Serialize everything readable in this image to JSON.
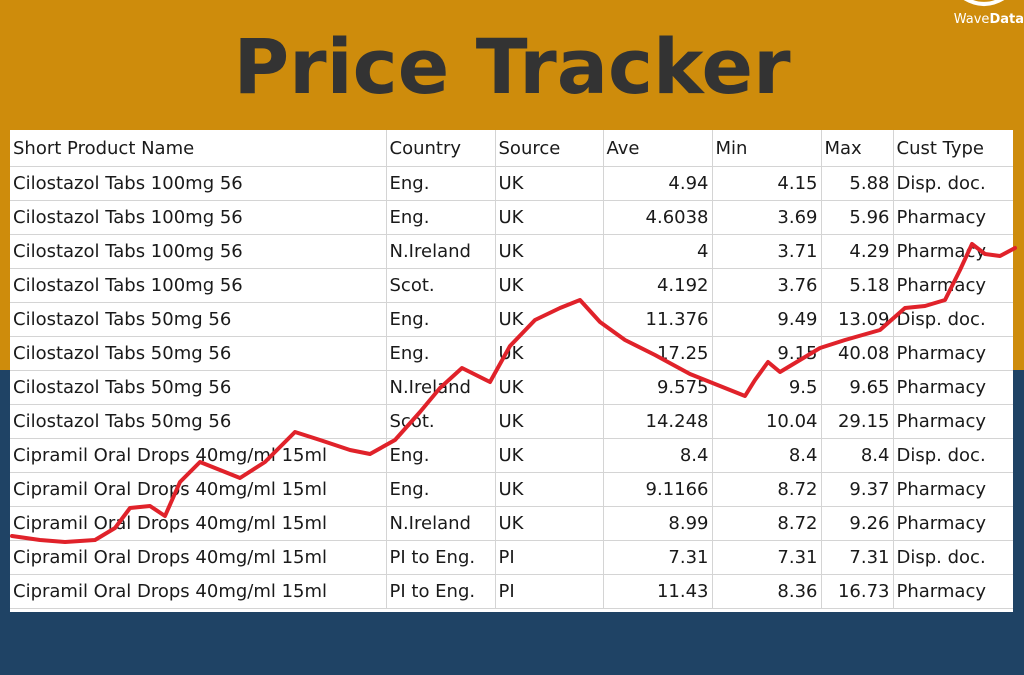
{
  "colors": {
    "top_band": "#CE8C0C",
    "bottom_band": "#1F4365",
    "title_text": "#333333",
    "trend_line": "#E0222A",
    "grid": "#D4D4D4"
  },
  "header": {
    "title": "Price Tracker"
  },
  "logo": {
    "icon": "wave-logo-icon",
    "text_main": "Wave",
    "text_bold": "Data"
  },
  "table": {
    "columns": [
      "Short Product Name",
      "Country",
      "Source",
      "Ave",
      "Min",
      "Max",
      "Cust Type"
    ],
    "rows": [
      [
        "Cilostazol Tabs 100mg 56",
        "Eng.",
        "UK",
        "4.94",
        "4.15",
        "5.88",
        "Disp. doc."
      ],
      [
        "Cilostazol Tabs 100mg 56",
        "Eng.",
        "UK",
        "4.6038",
        "3.69",
        "5.96",
        "Pharmacy"
      ],
      [
        "Cilostazol Tabs 100mg 56",
        "N.Ireland",
        "UK",
        "4",
        "3.71",
        "4.29",
        "Pharmacy"
      ],
      [
        "Cilostazol Tabs 100mg 56",
        "Scot.",
        "UK",
        "4.192",
        "3.76",
        "5.18",
        "Pharmacy"
      ],
      [
        "Cilostazol Tabs 50mg 56",
        "Eng.",
        "UK",
        "11.376",
        "9.49",
        "13.09",
        "Disp. doc."
      ],
      [
        "Cilostazol Tabs 50mg 56",
        "Eng.",
        "UK",
        "17.25",
        "9.15",
        "40.08",
        "Pharmacy"
      ],
      [
        "Cilostazol Tabs 50mg 56",
        "N.Ireland",
        "UK",
        "9.575",
        "9.5",
        "9.65",
        "Pharmacy"
      ],
      [
        "Cilostazol Tabs 50mg 56",
        "Scot.",
        "UK",
        "14.248",
        "10.04",
        "29.15",
        "Pharmacy"
      ],
      [
        "Cipramil Oral Drops 40mg/ml 15ml",
        "Eng.",
        "UK",
        "8.4",
        "8.4",
        "8.4",
        "Disp. doc."
      ],
      [
        "Cipramil Oral Drops 40mg/ml 15ml",
        "Eng.",
        "UK",
        "9.1166",
        "8.72",
        "9.37",
        "Pharmacy"
      ],
      [
        "Cipramil Oral Drops 40mg/ml 15ml",
        "N.Ireland",
        "UK",
        "8.99",
        "8.72",
        "9.26",
        "Pharmacy"
      ],
      [
        "Cipramil Oral Drops 40mg/ml 15ml",
        "PI to Eng.",
        "PI",
        "7.31",
        "7.31",
        "7.31",
        "Disp. doc."
      ],
      [
        "Cipramil Oral Drops 40mg/ml 15ml",
        "PI to Eng.",
        "PI",
        "11.43",
        "8.36",
        "16.73",
        "Pharmacy"
      ]
    ]
  }
}
